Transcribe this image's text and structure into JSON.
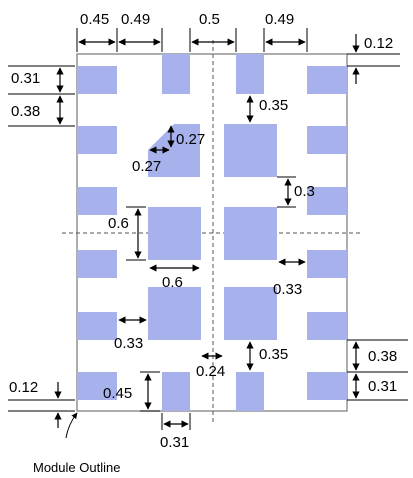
{
  "dimensions": {
    "col_pad_width": "0.45",
    "col_gap_1": "0.49",
    "col_gap_center": "0.5",
    "col_gap_3": "0.49",
    "top_margin": "0.12",
    "left_pad_height": "0.31",
    "left_pad_gap": "0.38",
    "chamfer_h": "0.27",
    "chamfer_v": "0.27",
    "pad_vgap_top_right": "0.35",
    "pad_vgap_mid_right": "0.3",
    "center_pad_height": "0.6",
    "center_pad_width": "0.6",
    "right_pad_to_center": "0.33",
    "left_pad_to_center": "0.33",
    "center_gap": "0.24",
    "pad_vgap_bottom_right": "0.35",
    "right_pad_gap": "0.38",
    "right_pad_height": "0.31",
    "bottom_margin": "0.12",
    "bottom_pad_height": "0.45",
    "bottom_pad_width": "0.31"
  },
  "caption": "Module  Outline",
  "colors": {
    "pad": "#a7b2ec",
    "outline": "#777777"
  }
}
